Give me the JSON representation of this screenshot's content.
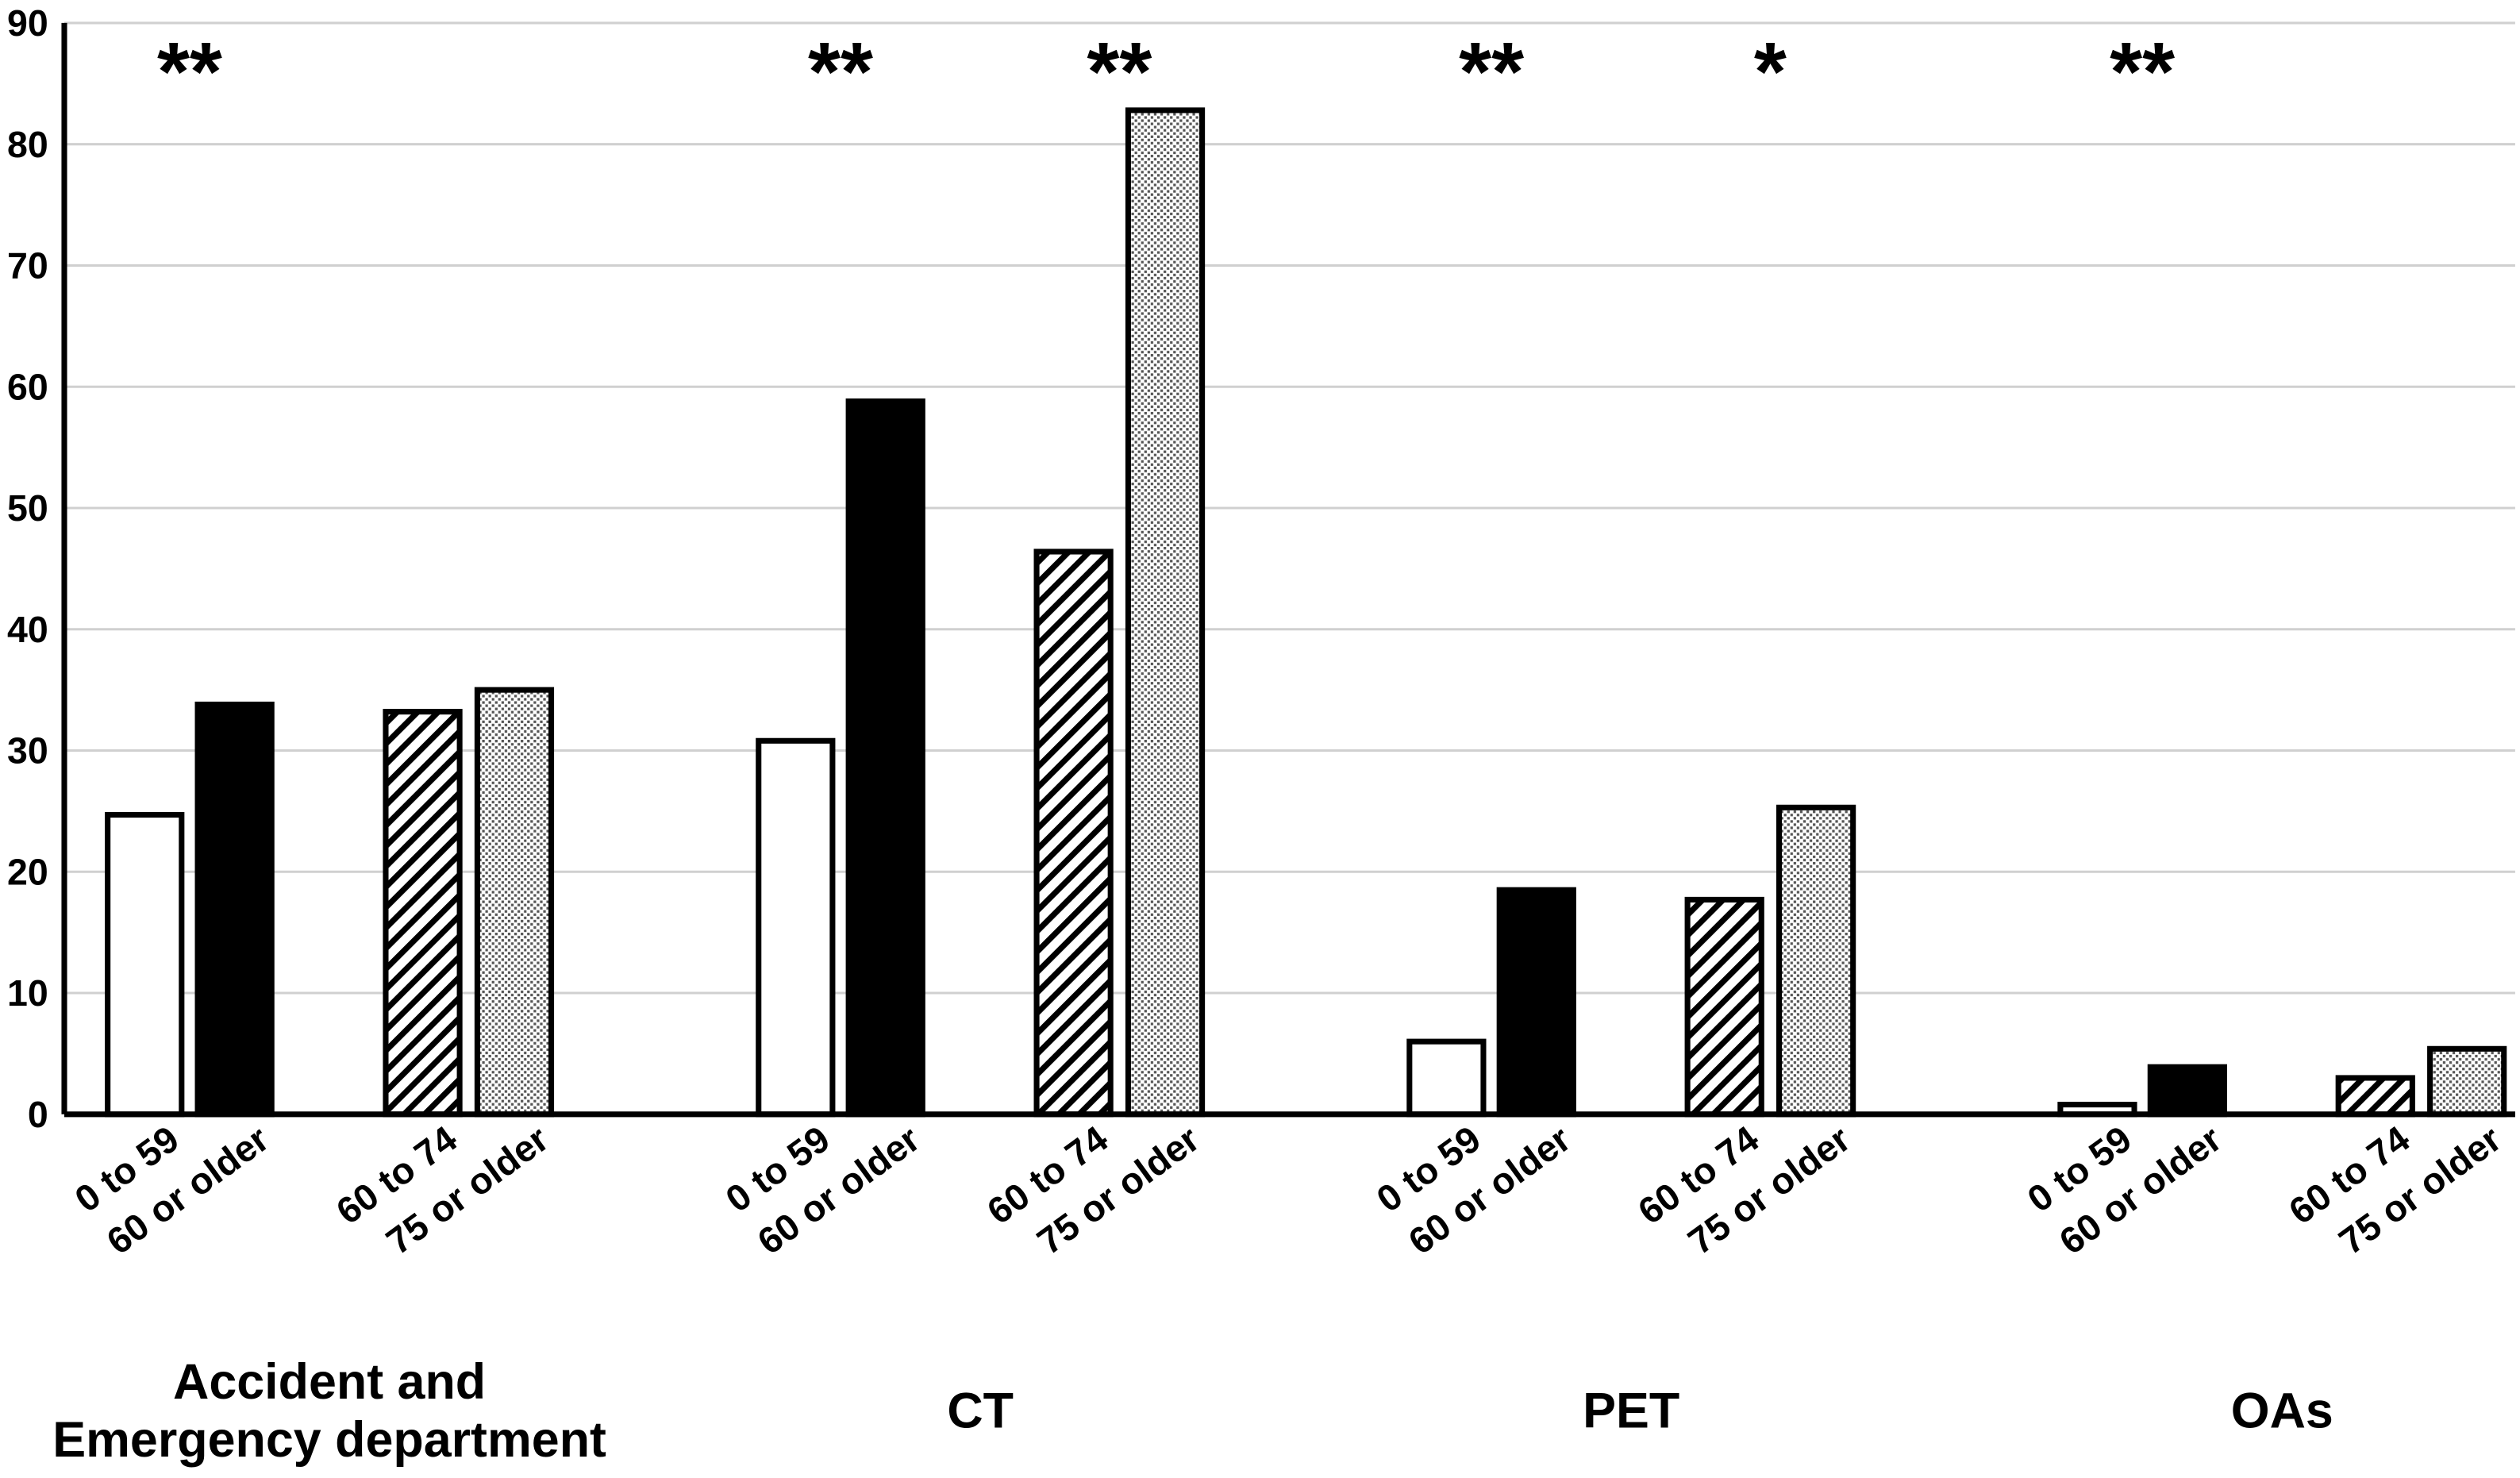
{
  "chart_data": {
    "type": "bar",
    "categories": [
      "Accident and\nEmergency department",
      "CT",
      "PET",
      "OAs"
    ],
    "series": [
      {
        "name": "0 to 59",
        "color": "#ffffff",
        "values": [
          24.7,
          30.8,
          6.0,
          0.8
        ]
      },
      {
        "name": "60 or older",
        "color": "#000000",
        "values": [
          33.8,
          58.8,
          18.5,
          3.9
        ]
      },
      {
        "name": "60 to 74",
        "color": "#ffffff",
        "pattern": "hatch",
        "values": [
          33.2,
          46.4,
          17.7,
          3.0
        ]
      },
      {
        "name": "75 or older",
        "color": "#ffffff",
        "pattern": "dots",
        "values": [
          35.0,
          82.8,
          25.3,
          5.4
        ]
      }
    ],
    "significance": [
      [
        "**",
        null
      ],
      [
        "**",
        "**"
      ],
      [
        "**",
        "*"
      ],
      [
        "**",
        null
      ]
    ],
    "ylim": [
      0,
      90
    ],
    "yticks": [
      0,
      10,
      20,
      30,
      40,
      50,
      60,
      70,
      80,
      90
    ],
    "grid": true
  }
}
